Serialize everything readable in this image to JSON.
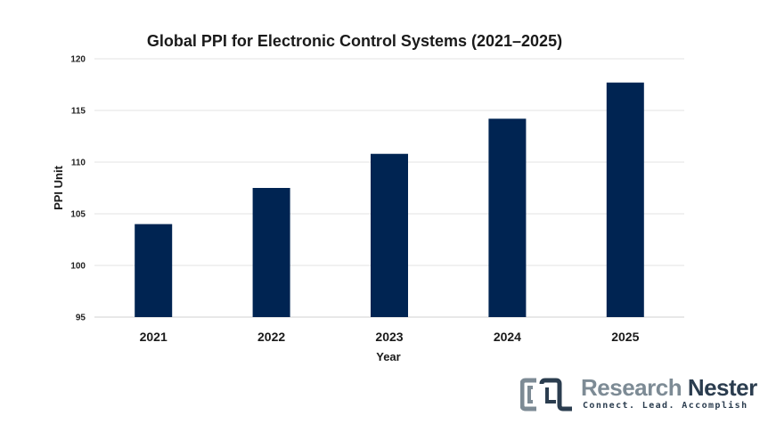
{
  "chart_data": {
    "type": "bar",
    "title": "Global PPI for Electronic Control Systems (2021–2025)",
    "xlabel": "Year",
    "ylabel": "PPI Unit",
    "categories": [
      "2021",
      "2022",
      "2023",
      "2024",
      "2025"
    ],
    "values": [
      104.0,
      107.5,
      110.8,
      114.2,
      117.7
    ],
    "ylim": [
      95,
      120
    ],
    "yticks": [
      95,
      100,
      105,
      110,
      115,
      120
    ],
    "grid": true,
    "bar_color": "#002452"
  },
  "logo": {
    "word1": "Research",
    "word2": "Nester",
    "tagline": "Connect. Lead. Accomplish",
    "primary_color": "#2b3d4f",
    "secondary_color": "#7d8b95"
  }
}
